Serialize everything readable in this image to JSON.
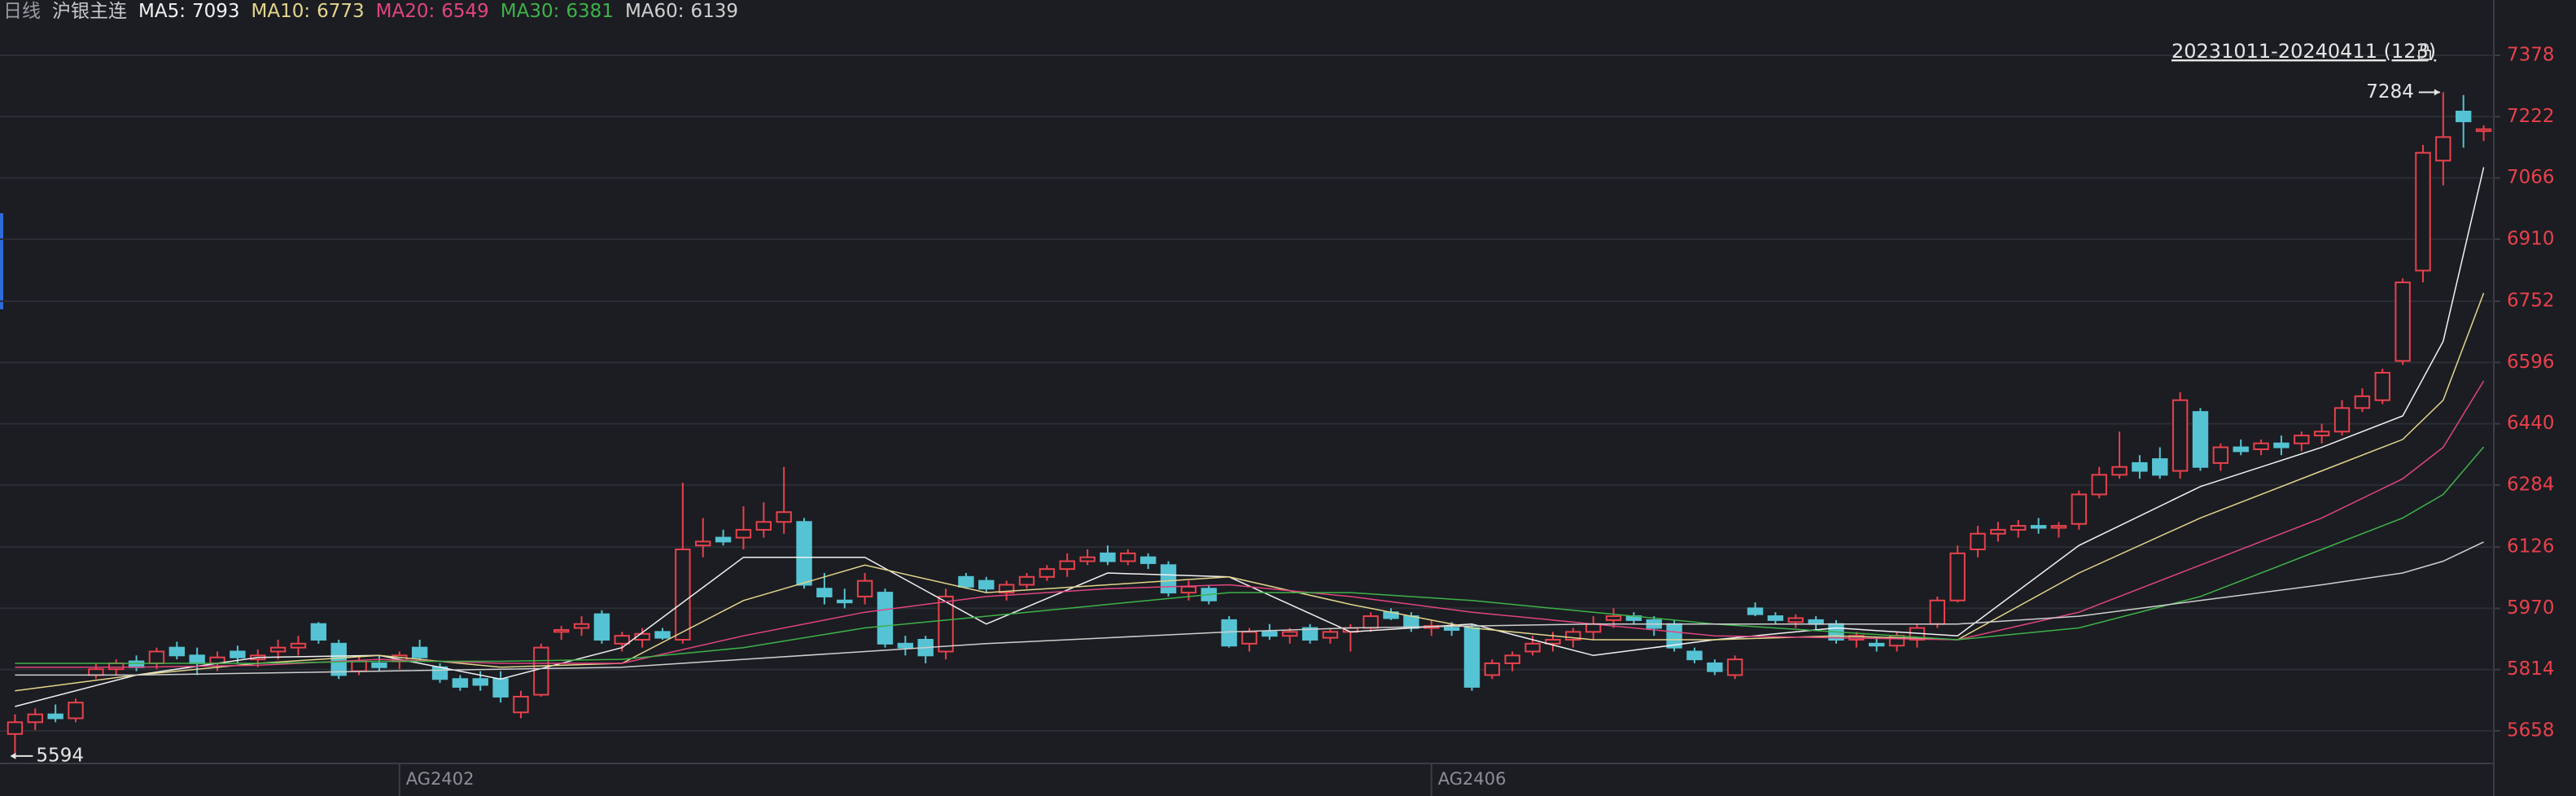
{
  "header": {
    "period": "日线",
    "symbol": "沪银主连"
  },
  "chart_data": {
    "type": "candlestick",
    "range_label": "20231011-20240411 (123)",
    "up_color": "#e8414c",
    "down_color": "#55c3d3",
    "grid": true,
    "ylim": [
      5575,
      7519
    ],
    "yticks": [
      5658,
      5814,
      5970,
      6126,
      6284,
      6440,
      6596,
      6752,
      6910,
      7066,
      7222,
      7378
    ],
    "x_labels": [
      {
        "index": 19,
        "label": "AG2402"
      },
      {
        "index": 70,
        "label": "AG2406"
      }
    ],
    "annotations": {
      "high": 7284,
      "low": 5594
    },
    "open": [
      5650,
      5680,
      5700,
      5690,
      5800,
      5815,
      5835,
      5830,
      5870,
      5850,
      5830,
      5860,
      5840,
      5860,
      5870,
      5930,
      5880,
      5810,
      5830,
      5835,
      5870,
      5820,
      5790,
      5790,
      5790,
      5705,
      5750,
      5910,
      5920,
      5955,
      5880,
      5890,
      5910,
      5890,
      6130,
      6150,
      6150,
      6170,
      6190,
      6190,
      6020,
      5990,
      6000,
      6010,
      5880,
      5890,
      5860,
      6050,
      6040,
      6010,
      6030,
      6050,
      6070,
      6090,
      6110,
      6090,
      6100,
      6080,
      6010,
      6020,
      5940,
      5880,
      5910,
      5900,
      5920,
      5895,
      5910,
      5920,
      5960,
      5950,
      5920,
      5920,
      5920,
      5800,
      5830,
      5860,
      5880,
      5890,
      5910,
      5940,
      5950,
      5940,
      5930,
      5860,
      5830,
      5800,
      5970,
      5950,
      5935,
      5940,
      5930,
      5890,
      5880,
      5875,
      5890,
      5930,
      5990,
      6120,
      6160,
      6170,
      6180,
      6175,
      6185,
      6260,
      6310,
      6340,
      6350,
      6320,
      6470,
      6340,
      6380,
      6375,
      6390,
      6390,
      6410,
      6420,
      6480,
      6500,
      6600,
      6830,
      7110,
      7235,
      7185
    ],
    "high": [
      5700,
      5715,
      5725,
      5740,
      5830,
      5840,
      5850,
      5870,
      5885,
      5870,
      5860,
      5875,
      5865,
      5890,
      5900,
      5935,
      5890,
      5850,
      5850,
      5860,
      5890,
      5830,
      5800,
      5810,
      5810,
      5760,
      5880,
      5925,
      5950,
      5965,
      5910,
      5920,
      5920,
      6290,
      6200,
      6170,
      6230,
      6240,
      6330,
      6200,
      6060,
      6020,
      6060,
      6020,
      5900,
      5900,
      6020,
      6060,
      6050,
      6040,
      6060,
      6080,
      6110,
      6120,
      6130,
      6120,
      6110,
      6090,
      6040,
      6030,
      5950,
      5920,
      5930,
      5920,
      5930,
      5920,
      5930,
      5960,
      5970,
      5960,
      5940,
      5935,
      5930,
      5840,
      5860,
      5900,
      5910,
      5920,
      5950,
      5970,
      5960,
      5950,
      5940,
      5870,
      5840,
      5850,
      5985,
      5960,
      5955,
      5950,
      5940,
      5910,
      5895,
      5910,
      5930,
      6000,
      6130,
      6180,
      6190,
      6195,
      6200,
      6190,
      6270,
      6330,
      6420,
      6360,
      6380,
      6520,
      6480,
      6390,
      6400,
      6400,
      6410,
      6420,
      6440,
      6500,
      6530,
      6580,
      6810,
      7150,
      7284,
      7277,
      7200
    ],
    "low": [
      5594,
      5660,
      5680,
      5680,
      5790,
      5800,
      5810,
      5815,
      5840,
      5800,
      5810,
      5830,
      5820,
      5840,
      5850,
      5880,
      5790,
      5800,
      5810,
      5815,
      5840,
      5780,
      5760,
      5760,
      5730,
      5690,
      5745,
      5890,
      5900,
      5880,
      5860,
      5870,
      5890,
      5880,
      6100,
      6130,
      6120,
      6150,
      6160,
      6020,
      5980,
      5970,
      5980,
      5870,
      5850,
      5830,
      5840,
      6020,
      6010,
      5990,
      6020,
      6040,
      6050,
      6080,
      6080,
      6080,
      6070,
      6000,
      5990,
      5980,
      5870,
      5860,
      5890,
      5880,
      5880,
      5880,
      5860,
      5910,
      5940,
      5910,
      5900,
      5900,
      5760,
      5790,
      5810,
      5850,
      5860,
      5870,
      5890,
      5920,
      5930,
      5900,
      5860,
      5830,
      5800,
      5790,
      5950,
      5930,
      5920,
      5915,
      5880,
      5870,
      5860,
      5860,
      5870,
      5920,
      5985,
      6100,
      6140,
      6150,
      6160,
      6150,
      6170,
      6250,
      6300,
      6300,
      6300,
      6300,
      6320,
      6320,
      6360,
      6360,
      6360,
      6370,
      6390,
      6410,
      6470,
      6490,
      6590,
      6800,
      7047,
      7143,
      7160
    ],
    "close": [
      5680,
      5700,
      5690,
      5730,
      5815,
      5830,
      5820,
      5860,
      5850,
      5830,
      5845,
      5845,
      5850,
      5870,
      5880,
      5890,
      5800,
      5835,
      5820,
      5850,
      5845,
      5790,
      5770,
      5775,
      5745,
      5745,
      5870,
      5915,
      5930,
      5890,
      5900,
      5905,
      5895,
      6120,
      6140,
      6140,
      6170,
      6190,
      6215,
      6030,
      6000,
      5985,
      6040,
      5880,
      5870,
      5850,
      6000,
      6025,
      6020,
      6030,
      6050,
      6070,
      6090,
      6100,
      6090,
      6110,
      6085,
      6010,
      6025,
      5990,
      5875,
      5910,
      5900,
      5910,
      5890,
      5910,
      5920,
      5950,
      5945,
      5920,
      5925,
      5915,
      5770,
      5830,
      5850,
      5880,
      5890,
      5910,
      5930,
      5950,
      5940,
      5920,
      5870,
      5840,
      5810,
      5840,
      5955,
      5940,
      5945,
      5930,
      5890,
      5900,
      5875,
      5900,
      5920,
      5990,
      6110,
      6160,
      6170,
      6180,
      6175,
      6180,
      6260,
      6310,
      6330,
      6320,
      6310,
      6500,
      6330,
      6380,
      6370,
      6390,
      6380,
      6410,
      6420,
      6480,
      6510,
      6570,
      6800,
      7130,
      7170,
      7210,
      7190
    ],
    "series": [
      {
        "name": "MA5:",
        "last": 7093,
        "color": "#f2f2f2",
        "x": [
          0,
          6,
          12,
          18,
          24,
          30,
          36,
          42,
          48,
          54,
          60,
          66,
          72,
          78,
          84,
          90,
          96,
          102,
          108,
          114,
          118,
          120,
          122
        ],
        "values": [
          5720,
          5800,
          5845,
          5850,
          5790,
          5870,
          6100,
          6100,
          5930,
          6060,
          6050,
          5910,
          5930,
          5850,
          5890,
          5920,
          5900,
          6130,
          6280,
          6380,
          6460,
          6650,
          7093
        ]
      },
      {
        "name": "MA10:",
        "last": 6773,
        "color": "#e3d58c",
        "x": [
          0,
          6,
          12,
          18,
          24,
          30,
          36,
          42,
          48,
          54,
          60,
          66,
          72,
          78,
          84,
          90,
          96,
          102,
          108,
          114,
          118,
          120,
          122
        ],
        "values": [
          5760,
          5800,
          5830,
          5850,
          5820,
          5830,
          5990,
          6080,
          6010,
          6030,
          6050,
          5980,
          5920,
          5890,
          5890,
          5900,
          5890,
          6060,
          6200,
          6320,
          6400,
          6500,
          6773
        ]
      },
      {
        "name": "MA20:",
        "last": 6549,
        "color": "#e0457f",
        "x": [
          0,
          6,
          12,
          18,
          24,
          30,
          36,
          42,
          48,
          54,
          60,
          66,
          72,
          78,
          84,
          90,
          96,
          102,
          108,
          114,
          118,
          120,
          122
        ],
        "values": [
          5820,
          5820,
          5825,
          5840,
          5830,
          5830,
          5900,
          5960,
          6000,
          6020,
          6030,
          6000,
          5960,
          5930,
          5900,
          5895,
          5890,
          5960,
          6080,
          6200,
          6300,
          6380,
          6549
        ]
      },
      {
        "name": "MA30:",
        "last": 6381,
        "color": "#3fb24a",
        "x": [
          0,
          6,
          12,
          18,
          24,
          30,
          36,
          42,
          48,
          54,
          60,
          66,
          72,
          78,
          84,
          90,
          96,
          102,
          108,
          114,
          118,
          120,
          122
        ],
        "values": [
          5830,
          5830,
          5830,
          5835,
          5835,
          5840,
          5870,
          5920,
          5950,
          5980,
          6010,
          6010,
          5990,
          5960,
          5930,
          5910,
          5890,
          5920,
          6000,
          6120,
          6200,
          6260,
          6381
        ]
      },
      {
        "name": "MA60:",
        "last": 6139,
        "color": "#cfcfcf",
        "x": [
          0,
          6,
          12,
          18,
          24,
          30,
          36,
          42,
          48,
          54,
          60,
          66,
          72,
          78,
          84,
          90,
          96,
          102,
          108,
          114,
          118,
          120,
          122
        ],
        "values": [
          5800,
          5800,
          5805,
          5810,
          5815,
          5820,
          5840,
          5860,
          5880,
          5895,
          5910,
          5920,
          5925,
          5930,
          5930,
          5930,
          5930,
          5950,
          5990,
          6030,
          6060,
          6090,
          6139
        ]
      }
    ]
  }
}
